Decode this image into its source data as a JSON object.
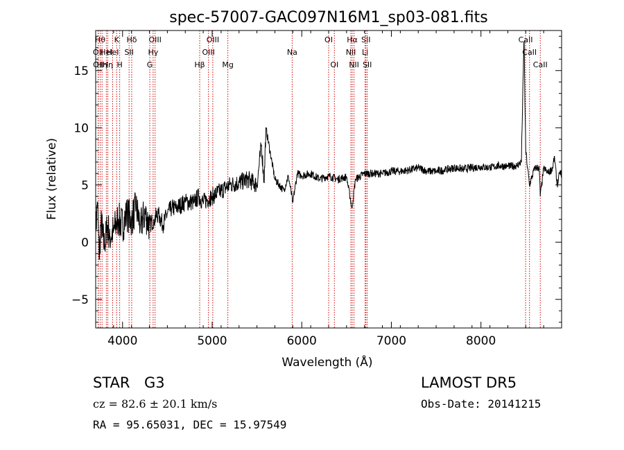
{
  "chart_data": {
    "type": "line",
    "title": "spec-57007-GAC097N16M1_sp03-081.fits",
    "xlabel": "Wavelength (Å)",
    "ylabel": "Flux (relative)",
    "xlim": [
      3700,
      8900
    ],
    "ylim": [
      -7.5,
      18.5
    ],
    "x_ticks": [
      4000,
      5000,
      6000,
      7000,
      8000
    ],
    "y_ticks": [
      -5,
      0,
      5,
      10,
      15
    ],
    "grid": false,
    "legend": "none",
    "line_color": "#000000",
    "line_marker_color": "#cc0000",
    "series": [
      {
        "x": [
          3700,
          3720,
          3740,
          3760,
          3780,
          3800,
          3830,
          3860,
          3900,
          3950,
          4000,
          4050,
          4100,
          4150,
          4200,
          4250,
          4300,
          4350,
          4400,
          4450,
          4500,
          4550,
          4600,
          4700,
          4800,
          4850,
          4900,
          5000,
          5100,
          5200,
          5300,
          5400,
          5500,
          5550,
          5580,
          5600,
          5700,
          5800,
          5850,
          5900,
          5950,
          6000,
          6100,
          6200,
          6300,
          6400,
          6500,
          6560,
          6600,
          6700,
          6800,
          6900,
          7000,
          7100,
          7200,
          7300,
          7400,
          7500,
          7600,
          7700,
          7800,
          7900,
          8000,
          8100,
          8200,
          8300,
          8400,
          8450,
          8480,
          8500,
          8520,
          8542,
          8600,
          8650,
          8662,
          8700,
          8750,
          8800,
          8820,
          8850,
          8880,
          8900
        ],
        "y": [
          1.0,
          3.5,
          -1.5,
          2.0,
          0.5,
          -0.5,
          1.5,
          0.5,
          1.0,
          2.0,
          1.5,
          2.5,
          2.0,
          3.0,
          1.5,
          2.5,
          1.5,
          2.0,
          2.5,
          1.5,
          2.5,
          3.0,
          3.0,
          3.5,
          3.5,
          4.0,
          3.5,
          4.0,
          4.5,
          5.0,
          5.2,
          5.5,
          5.0,
          8.5,
          5.2,
          10.0,
          5.5,
          4.5,
          5.8,
          3.5,
          6.0,
          5.8,
          6.0,
          5.5,
          5.8,
          5.5,
          5.7,
          3.0,
          5.5,
          6.0,
          6.0,
          6.0,
          6.2,
          6.2,
          6.3,
          6.5,
          6.2,
          6.2,
          6.3,
          6.5,
          6.4,
          6.5,
          6.6,
          6.5,
          6.7,
          6.6,
          6.7,
          7.0,
          17.5,
          8.0,
          6.5,
          5.0,
          6.5,
          6.5,
          4.0,
          6.5,
          6.0,
          6.5,
          7.5,
          5.0,
          6.0,
          6.0
        ]
      }
    ],
    "line_markers": [
      {
        "x": 3727,
        "row": 1,
        "label": "OII"
      },
      {
        "x": 3729,
        "row": 2,
        "label": "OII"
      },
      {
        "x": 3750,
        "row": 0,
        "label": "Hθ"
      },
      {
        "x": 3771,
        "row": 2,
        "label": "Hη"
      },
      {
        "x": 3819,
        "row": 1,
        "label": "HeI"
      },
      {
        "x": 3835,
        "row": 2,
        "label": "Hη"
      },
      {
        "x": 3889,
        "row": 1,
        "label": "HeI"
      },
      {
        "x": 3934,
        "row": 0,
        "label": "K"
      },
      {
        "x": 3968,
        "row": 2,
        "label": "H"
      },
      {
        "x": 4073,
        "row": 1,
        "label": "SII"
      },
      {
        "x": 4102,
        "row": 0,
        "label": "Hδ"
      },
      {
        "x": 4304,
        "row": 2,
        "label": "G"
      },
      {
        "x": 4341,
        "row": 1,
        "label": "Hγ"
      },
      {
        "x": 4363,
        "row": 0,
        "label": "OIII"
      },
      {
        "x": 4861,
        "row": 2,
        "label": "Hβ"
      },
      {
        "x": 4959,
        "row": 1,
        "label": "OIII"
      },
      {
        "x": 5007,
        "row": 0,
        "label": "OIII"
      },
      {
        "x": 5175,
        "row": 2,
        "label": "Mg"
      },
      {
        "x": 5893,
        "row": 1,
        "label": "Na"
      },
      {
        "x": 6300,
        "row": 0,
        "label": "OI"
      },
      {
        "x": 6364,
        "row": 2,
        "label": "OI"
      },
      {
        "x": 6548,
        "row": 1,
        "label": "NII"
      },
      {
        "x": 6563,
        "row": 0,
        "label": "Hα"
      },
      {
        "x": 6583,
        "row": 2,
        "label": "NII"
      },
      {
        "x": 6707,
        "row": 1,
        "label": "Li"
      },
      {
        "x": 6716,
        "row": 0,
        "label": "SII"
      },
      {
        "x": 6731,
        "row": 2,
        "label": "SII"
      },
      {
        "x": 8498,
        "row": 0,
        "label": "CaII"
      },
      {
        "x": 8542,
        "row": 1,
        "label": "CaII"
      },
      {
        "x": 8662,
        "row": 2,
        "label": "CaII"
      }
    ]
  },
  "info": {
    "object_type": "STAR",
    "subclass": "G3",
    "survey": "LAMOST DR5",
    "redshift": "cz = 82.6 ± 20.1 km/s",
    "obs_date": "Obs-Date: 20141215",
    "coords": "RA =  95.65031, DEC =  15.97549"
  }
}
